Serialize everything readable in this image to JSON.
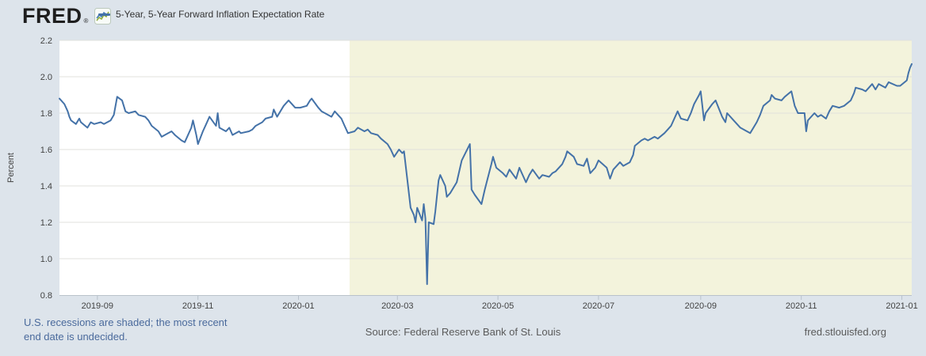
{
  "header": {
    "logo_text": "FRED",
    "registered_mark": "®",
    "legend": {
      "label": "5-Year, 5-Year Forward Inflation Expectation Rate"
    }
  },
  "footer": {
    "note_line1": "U.S. recessions are shaded; the most recent",
    "note_line2": "end date is undecided.",
    "source": "Source: Federal Reserve Bank of St. Louis",
    "site_link": "fred.stlouisfed.org"
  },
  "colors": {
    "page_bg": "#dde4eb",
    "plot_bg": "#ffffff",
    "recession_band": "#f3f3dc",
    "line": "#4472a8",
    "grid": "#e0e0dc",
    "axis": "#b9c2cb",
    "tick_text": "#424242",
    "note_text": "#4a6a9c",
    "footer_text": "#5a5a5a",
    "logo_icon_green": "#8fae3f",
    "logo_icon_blue": "#4a7ebb"
  },
  "chart_data": {
    "type": "line",
    "title": "5-Year, 5-Year Forward Inflation Expectation Rate",
    "ylabel": "Percent",
    "xlabel": "",
    "grid": true,
    "legend_position": "top-left",
    "x_domain": [
      "2019-08-09",
      "2021-01-07"
    ],
    "ylim": [
      0.8,
      2.2
    ],
    "y_ticks": [
      "0.8",
      "1.0",
      "1.2",
      "1.4",
      "1.6",
      "1.8",
      "2.0",
      "2.2"
    ],
    "x_ticks": [
      {
        "date": "2019-09-01",
        "label": "2019-09"
      },
      {
        "date": "2019-11-01",
        "label": "2019-11"
      },
      {
        "date": "2020-01-01",
        "label": "2020-01"
      },
      {
        "date": "2020-03-01",
        "label": "2020-03"
      },
      {
        "date": "2020-05-01",
        "label": "2020-05"
      },
      {
        "date": "2020-07-01",
        "label": "2020-07"
      },
      {
        "date": "2020-09-01",
        "label": "2020-09"
      },
      {
        "date": "2020-11-01",
        "label": "2020-11"
      },
      {
        "date": "2021-01-01",
        "label": "2021-01"
      }
    ],
    "recession_band": {
      "start": "2020-02-01",
      "end": "2021-01-07"
    },
    "series": [
      {
        "name": "5-Year, 5-Year Forward Inflation Expectation Rate",
        "color": "#4472a8",
        "points": [
          [
            "2019-08-09",
            1.88
          ],
          [
            "2019-08-12",
            1.85
          ],
          [
            "2019-08-13",
            1.83
          ],
          [
            "2019-08-14",
            1.81
          ],
          [
            "2019-08-15",
            1.78
          ],
          [
            "2019-08-16",
            1.76
          ],
          [
            "2019-08-19",
            1.74
          ],
          [
            "2019-08-21",
            1.77
          ],
          [
            "2019-08-22",
            1.75
          ],
          [
            "2019-08-26",
            1.72
          ],
          [
            "2019-08-28",
            1.75
          ],
          [
            "2019-08-30",
            1.74
          ],
          [
            "2019-09-03",
            1.75
          ],
          [
            "2019-09-05",
            1.74
          ],
          [
            "2019-09-09",
            1.76
          ],
          [
            "2019-09-11",
            1.79
          ],
          [
            "2019-09-12",
            1.84
          ],
          [
            "2019-09-13",
            1.89
          ],
          [
            "2019-09-16",
            1.87
          ],
          [
            "2019-09-18",
            1.81
          ],
          [
            "2019-09-20",
            1.8
          ],
          [
            "2019-09-24",
            1.81
          ],
          [
            "2019-09-26",
            1.79
          ],
          [
            "2019-09-30",
            1.78
          ],
          [
            "2019-10-02",
            1.76
          ],
          [
            "2019-10-04",
            1.73
          ],
          [
            "2019-10-08",
            1.7
          ],
          [
            "2019-10-10",
            1.67
          ],
          [
            "2019-10-14",
            1.69
          ],
          [
            "2019-10-16",
            1.7
          ],
          [
            "2019-10-18",
            1.68
          ],
          [
            "2019-10-22",
            1.65
          ],
          [
            "2019-10-24",
            1.64
          ],
          [
            "2019-10-25",
            1.66
          ],
          [
            "2019-10-28",
            1.72
          ],
          [
            "2019-10-29",
            1.76
          ],
          [
            "2019-10-31",
            1.68
          ],
          [
            "2019-11-01",
            1.63
          ],
          [
            "2019-11-04",
            1.7
          ],
          [
            "2019-11-06",
            1.74
          ],
          [
            "2019-11-08",
            1.78
          ],
          [
            "2019-11-12",
            1.73
          ],
          [
            "2019-11-13",
            1.8
          ],
          [
            "2019-11-14",
            1.72
          ],
          [
            "2019-11-18",
            1.7
          ],
          [
            "2019-11-20",
            1.72
          ],
          [
            "2019-11-22",
            1.68
          ],
          [
            "2019-11-26",
            1.7
          ],
          [
            "2019-11-27",
            1.69
          ],
          [
            "2019-12-02",
            1.7
          ],
          [
            "2019-12-04",
            1.71
          ],
          [
            "2019-12-06",
            1.73
          ],
          [
            "2019-12-10",
            1.75
          ],
          [
            "2019-12-12",
            1.77
          ],
          [
            "2019-12-16",
            1.78
          ],
          [
            "2019-12-17",
            1.82
          ],
          [
            "2019-12-19",
            1.78
          ],
          [
            "2019-12-23",
            1.84
          ],
          [
            "2019-12-26",
            1.87
          ],
          [
            "2019-12-30",
            1.83
          ],
          [
            "2020-01-02",
            1.83
          ],
          [
            "2020-01-06",
            1.84
          ],
          [
            "2020-01-08",
            1.87
          ],
          [
            "2020-01-09",
            1.88
          ],
          [
            "2020-01-13",
            1.83
          ],
          [
            "2020-01-15",
            1.81
          ],
          [
            "2020-01-17",
            1.8
          ],
          [
            "2020-01-21",
            1.78
          ],
          [
            "2020-01-23",
            1.81
          ],
          [
            "2020-01-27",
            1.77
          ],
          [
            "2020-01-29",
            1.73
          ],
          [
            "2020-01-31",
            1.69
          ],
          [
            "2020-02-04",
            1.7
          ],
          [
            "2020-02-06",
            1.72
          ],
          [
            "2020-02-10",
            1.7
          ],
          [
            "2020-02-12",
            1.71
          ],
          [
            "2020-02-14",
            1.69
          ],
          [
            "2020-02-18",
            1.68
          ],
          [
            "2020-02-20",
            1.66
          ],
          [
            "2020-02-24",
            1.63
          ],
          [
            "2020-02-26",
            1.6
          ],
          [
            "2020-02-28",
            1.56
          ],
          [
            "2020-03-02",
            1.6
          ],
          [
            "2020-03-04",
            1.58
          ],
          [
            "2020-03-05",
            1.59
          ],
          [
            "2020-03-09",
            1.28
          ],
          [
            "2020-03-11",
            1.24
          ],
          [
            "2020-03-12",
            1.2
          ],
          [
            "2020-03-13",
            1.28
          ],
          [
            "2020-03-16",
            1.21
          ],
          [
            "2020-03-17",
            1.3
          ],
          [
            "2020-03-18",
            1.22
          ],
          [
            "2020-03-19",
            0.86
          ],
          [
            "2020-03-20",
            1.2
          ],
          [
            "2020-03-23",
            1.19
          ],
          [
            "2020-03-24",
            1.26
          ],
          [
            "2020-03-26",
            1.43
          ],
          [
            "2020-03-27",
            1.46
          ],
          [
            "2020-03-30",
            1.4
          ],
          [
            "2020-03-31",
            1.34
          ],
          [
            "2020-04-02",
            1.36
          ],
          [
            "2020-04-06",
            1.42
          ],
          [
            "2020-04-08",
            1.5
          ],
          [
            "2020-04-09",
            1.54
          ],
          [
            "2020-04-14",
            1.63
          ],
          [
            "2020-04-15",
            1.38
          ],
          [
            "2020-04-17",
            1.35
          ],
          [
            "2020-04-21",
            1.3
          ],
          [
            "2020-04-23",
            1.38
          ],
          [
            "2020-04-27",
            1.52
          ],
          [
            "2020-04-28",
            1.56
          ],
          [
            "2020-04-30",
            1.5
          ],
          [
            "2020-05-04",
            1.47
          ],
          [
            "2020-05-06",
            1.45
          ],
          [
            "2020-05-08",
            1.49
          ],
          [
            "2020-05-12",
            1.44
          ],
          [
            "2020-05-14",
            1.5
          ],
          [
            "2020-05-18",
            1.42
          ],
          [
            "2020-05-20",
            1.46
          ],
          [
            "2020-05-22",
            1.49
          ],
          [
            "2020-05-26",
            1.44
          ],
          [
            "2020-05-28",
            1.46
          ],
          [
            "2020-06-01",
            1.45
          ],
          [
            "2020-06-03",
            1.47
          ],
          [
            "2020-06-05",
            1.48
          ],
          [
            "2020-06-09",
            1.52
          ],
          [
            "2020-06-11",
            1.56
          ],
          [
            "2020-06-12",
            1.59
          ],
          [
            "2020-06-16",
            1.56
          ],
          [
            "2020-06-18",
            1.52
          ],
          [
            "2020-06-22",
            1.51
          ],
          [
            "2020-06-24",
            1.55
          ],
          [
            "2020-06-26",
            1.47
          ],
          [
            "2020-06-29",
            1.5
          ],
          [
            "2020-07-01",
            1.54
          ],
          [
            "2020-07-06",
            1.5
          ],
          [
            "2020-07-08",
            1.44
          ],
          [
            "2020-07-10",
            1.49
          ],
          [
            "2020-07-14",
            1.53
          ],
          [
            "2020-07-16",
            1.51
          ],
          [
            "2020-07-20",
            1.53
          ],
          [
            "2020-07-22",
            1.57
          ],
          [
            "2020-07-23",
            1.62
          ],
          [
            "2020-07-27",
            1.65
          ],
          [
            "2020-07-29",
            1.66
          ],
          [
            "2020-07-31",
            1.65
          ],
          [
            "2020-08-04",
            1.67
          ],
          [
            "2020-08-06",
            1.66
          ],
          [
            "2020-08-10",
            1.69
          ],
          [
            "2020-08-12",
            1.71
          ],
          [
            "2020-08-14",
            1.73
          ],
          [
            "2020-08-18",
            1.81
          ],
          [
            "2020-08-20",
            1.77
          ],
          [
            "2020-08-24",
            1.76
          ],
          [
            "2020-08-26",
            1.8
          ],
          [
            "2020-08-28",
            1.85
          ],
          [
            "2020-08-31",
            1.9
          ],
          [
            "2020-09-01",
            1.92
          ],
          [
            "2020-09-03",
            1.76
          ],
          [
            "2020-09-04",
            1.8
          ],
          [
            "2020-09-08",
            1.85
          ],
          [
            "2020-09-10",
            1.87
          ],
          [
            "2020-09-14",
            1.78
          ],
          [
            "2020-09-16",
            1.75
          ],
          [
            "2020-09-17",
            1.8
          ],
          [
            "2020-09-21",
            1.76
          ],
          [
            "2020-09-23",
            1.74
          ],
          [
            "2020-09-25",
            1.72
          ],
          [
            "2020-09-29",
            1.7
          ],
          [
            "2020-10-01",
            1.69
          ],
          [
            "2020-10-05",
            1.75
          ],
          [
            "2020-10-07",
            1.79
          ],
          [
            "2020-10-09",
            1.84
          ],
          [
            "2020-10-13",
            1.87
          ],
          [
            "2020-10-14",
            1.9
          ],
          [
            "2020-10-16",
            1.88
          ],
          [
            "2020-10-20",
            1.87
          ],
          [
            "2020-10-22",
            1.89
          ],
          [
            "2020-10-26",
            1.92
          ],
          [
            "2020-10-28",
            1.84
          ],
          [
            "2020-10-30",
            1.8
          ],
          [
            "2020-11-03",
            1.8
          ],
          [
            "2020-11-04",
            1.7
          ],
          [
            "2020-11-05",
            1.76
          ],
          [
            "2020-11-09",
            1.8
          ],
          [
            "2020-11-11",
            1.78
          ],
          [
            "2020-11-13",
            1.79
          ],
          [
            "2020-11-16",
            1.77
          ],
          [
            "2020-11-18",
            1.81
          ],
          [
            "2020-11-20",
            1.84
          ],
          [
            "2020-11-24",
            1.83
          ],
          [
            "2020-11-27",
            1.84
          ],
          [
            "2020-12-01",
            1.87
          ],
          [
            "2020-12-03",
            1.91
          ],
          [
            "2020-12-04",
            1.94
          ],
          [
            "2020-12-08",
            1.93
          ],
          [
            "2020-12-10",
            1.92
          ],
          [
            "2020-12-14",
            1.96
          ],
          [
            "2020-12-16",
            1.93
          ],
          [
            "2020-12-18",
            1.96
          ],
          [
            "2020-12-22",
            1.94
          ],
          [
            "2020-12-24",
            1.97
          ],
          [
            "2020-12-29",
            1.95
          ],
          [
            "2020-12-31",
            1.95
          ],
          [
            "2021-01-04",
            1.98
          ],
          [
            "2021-01-05",
            2.02
          ],
          [
            "2021-01-06",
            2.05
          ],
          [
            "2021-01-07",
            2.07
          ]
        ]
      }
    ]
  }
}
